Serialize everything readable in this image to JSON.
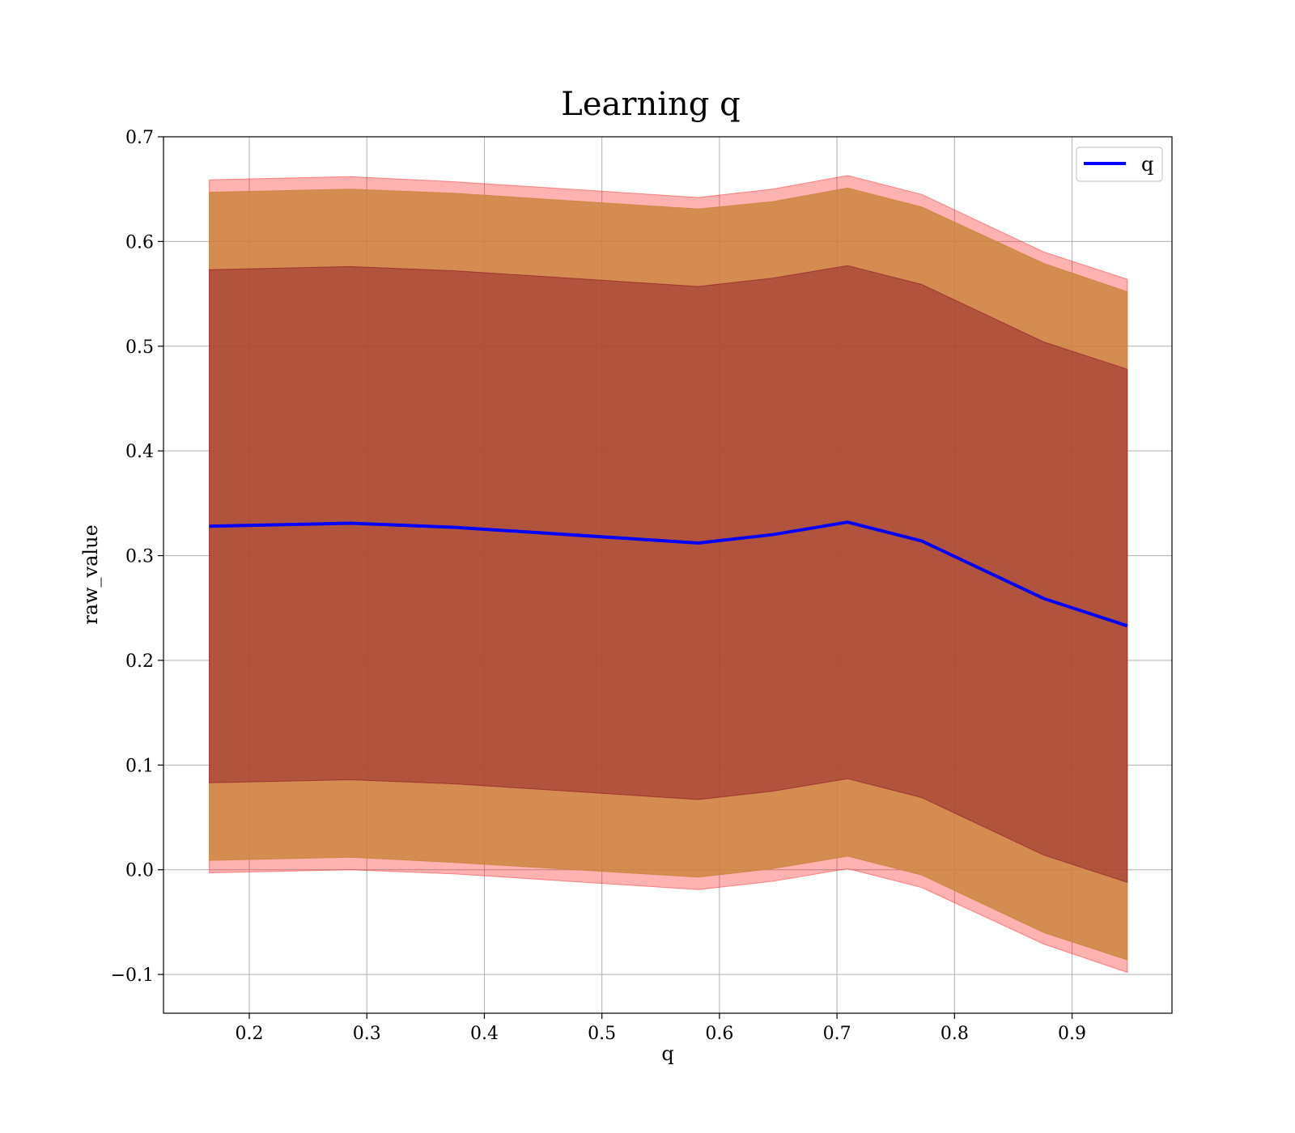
{
  "chart_data": {
    "type": "line",
    "title": "Learning q",
    "xlabel": "q",
    "ylabel": "raw_value",
    "xlim": [
      0.127,
      0.985
    ],
    "ylim": [
      -0.137,
      0.7
    ],
    "xticks": [
      0.2,
      0.3,
      0.4,
      0.5,
      0.6,
      0.7,
      0.8,
      0.9
    ],
    "xtick_labels": [
      "0.2",
      "0.3",
      "0.4",
      "0.5",
      "0.6",
      "0.7",
      "0.8",
      "0.9"
    ],
    "yticks": [
      -0.1,
      0.0,
      0.1,
      0.2,
      0.3,
      0.4,
      0.5,
      0.6,
      0.7
    ],
    "ytick_labels": [
      "−0.1",
      "0.0",
      "0.1",
      "0.2",
      "0.3",
      "0.4",
      "0.5",
      "0.6",
      "0.7"
    ],
    "grid": true,
    "legend_position": "top-right",
    "x": [
      0.166,
      0.286,
      0.375,
      0.582,
      0.645,
      0.709,
      0.772,
      0.876,
      0.947
    ],
    "series": [
      {
        "name": "q",
        "color": "#0000ff",
        "values": [
          0.328,
          0.331,
          0.327,
          0.312,
          0.32,
          0.332,
          0.314,
          0.259,
          0.233
        ]
      }
    ],
    "bands": [
      {
        "lower": [
          -0.003,
          0.0,
          -0.004,
          -0.019,
          -0.011,
          0.001,
          -0.017,
          -0.071,
          -0.098
        ],
        "upper": [
          0.659,
          0.662,
          0.657,
          0.642,
          0.65,
          0.663,
          0.645,
          0.59,
          0.564
        ],
        "color": "#ff0000",
        "opacity": 0.3
      },
      {
        "lower": [
          0.009,
          0.012,
          0.007,
          -0.007,
          0.001,
          0.013,
          -0.005,
          -0.06,
          -0.086
        ],
        "upper": [
          0.647,
          0.65,
          0.646,
          0.631,
          0.638,
          0.651,
          0.633,
          0.579,
          0.552
        ],
        "color": "#cd853f",
        "opacity": 0.85
      },
      {
        "lower": [
          0.083,
          0.086,
          0.082,
          0.067,
          0.075,
          0.087,
          0.069,
          0.014,
          -0.012
        ],
        "upper": [
          0.573,
          0.576,
          0.572,
          0.557,
          0.565,
          0.577,
          0.559,
          0.504,
          0.478
        ],
        "color": "#800020",
        "opacity": 0.4
      }
    ]
  }
}
